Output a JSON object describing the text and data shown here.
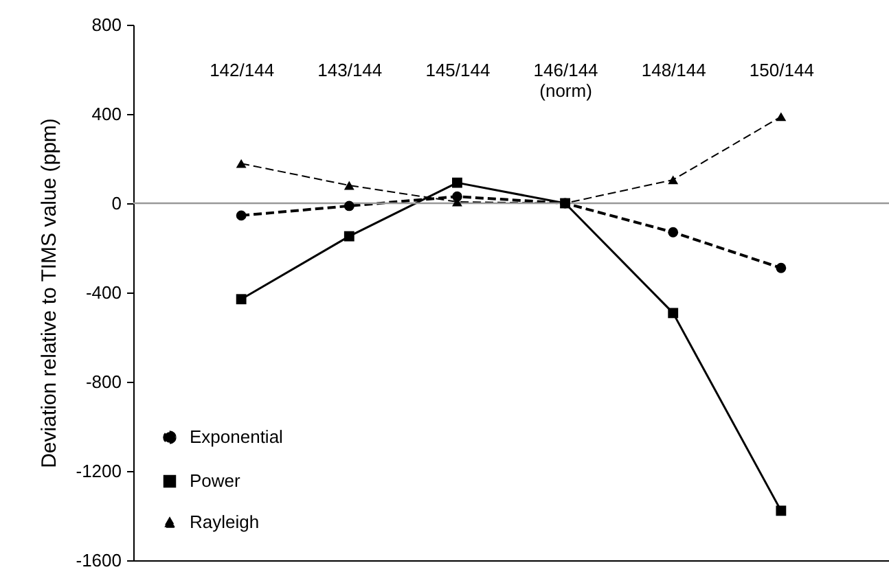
{
  "chart_data": {
    "type": "line",
    "ylabel": "Deviation relative to TIMS value (ppm)",
    "categories": [
      "142/144",
      "143/144",
      "145/144",
      "146/144 (norm)",
      "148/144",
      "150/144"
    ],
    "series": [
      {
        "name": "Exponential",
        "color": "#000000",
        "marker": "circle",
        "line_style": "dashed",
        "values": [
          -55,
          -12,
          30,
          0,
          -130,
          -290
        ]
      },
      {
        "name": "Power",
        "color": "#000000",
        "marker": "square",
        "line_style": "solid",
        "values": [
          -430,
          -148,
          92,
          0,
          -492,
          -1378
        ]
      },
      {
        "name": "Rayleigh",
        "color": "#000000",
        "marker": "triangle",
        "line_style": "dashed",
        "values": [
          178,
          80,
          6,
          0,
          105,
          388
        ]
      }
    ],
    "ylim": [
      -1600,
      800
    ],
    "yticks": [
      -1600,
      -1200,
      -800,
      -400,
      0,
      400,
      800
    ],
    "ref_lines": [
      {
        "axis": "y",
        "value": 0,
        "color": "#999999"
      }
    ],
    "grid": false,
    "legend": "bottom left"
  }
}
